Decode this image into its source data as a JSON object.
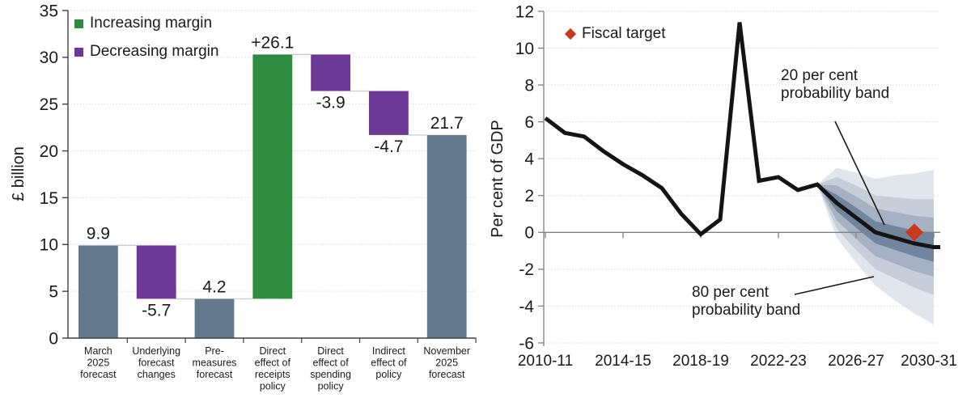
{
  "chart_data": [
    {
      "type": "bar",
      "subtype": "waterfall",
      "ylabel": "£ billion",
      "ylim": [
        0,
        35
      ],
      "yticks": [
        0,
        5,
        10,
        15,
        20,
        25,
        30,
        35
      ],
      "grid": "horizontal-dotted",
      "legend_position": "top-left",
      "legend": [
        {
          "label": "Increasing margin",
          "color": "#2f8b3f"
        },
        {
          "label": "Decreasing margin",
          "color": "#6c3a96"
        }
      ],
      "categories": [
        "March 2025 forecast",
        "Underlying forecast changes",
        "Pre-measures forecast",
        "Direct effect of receipts policy",
        "Direct effect of spending policy",
        "Indirect effect of policy",
        "November 2025 forecast"
      ],
      "category_lines": [
        [
          "March",
          "2025",
          "forecast"
        ],
        [
          "Underlying",
          "forecast",
          "changes"
        ],
        [
          "Pre-",
          "measures",
          "forecast"
        ],
        [
          "Direct",
          "effect of",
          "receipts",
          "policy"
        ],
        [
          "Direct",
          "effect of",
          "spending",
          "policy"
        ],
        [
          "Indirect",
          "effect of",
          "policy"
        ],
        [
          "November",
          "2025",
          "forecast"
        ]
      ],
      "bars": [
        {
          "base": 0,
          "top": 9.9,
          "value_label": "9.9",
          "label_side": "above",
          "color": "#64798e",
          "role": "total"
        },
        {
          "base": 4.2,
          "top": 9.9,
          "value_label": "-5.7",
          "label_side": "below",
          "color": "#6c3a96",
          "role": "decrease"
        },
        {
          "base": 0,
          "top": 4.2,
          "value_label": "4.2",
          "label_side": "above",
          "color": "#64798e",
          "role": "total"
        },
        {
          "base": 4.2,
          "top": 30.3,
          "value_label": "+26.1",
          "label_side": "above",
          "color": "#2f8b3f",
          "role": "increase"
        },
        {
          "base": 26.4,
          "top": 30.3,
          "value_label": "-3.9",
          "label_side": "below",
          "color": "#6c3a96",
          "role": "decrease"
        },
        {
          "base": 21.7,
          "top": 26.4,
          "value_label": "-4.7",
          "label_side": "below",
          "color": "#6c3a96",
          "role": "decrease"
        },
        {
          "base": 0,
          "top": 21.7,
          "value_label": "21.7",
          "label_side": "above",
          "color": "#64798e",
          "role": "total"
        }
      ]
    },
    {
      "type": "line",
      "subtype": "fan-chart",
      "ylabel": "Per cent of GDP",
      "ylim": [
        -6,
        12
      ],
      "yticks": [
        -6,
        -4,
        -2,
        0,
        2,
        4,
        6,
        8,
        10,
        12
      ],
      "grid": "horizontal-dotted",
      "x_tick_labels": [
        "2010-11",
        "2014-15",
        "2018-19",
        "2022-23",
        "2026-27",
        "2030-31"
      ],
      "x_tick_indices": [
        0,
        4,
        8,
        12,
        16,
        20
      ],
      "years": [
        "2010-11",
        "2011-12",
        "2012-13",
        "2013-14",
        "2014-15",
        "2015-16",
        "2016-17",
        "2017-18",
        "2018-19",
        "2019-20",
        "2020-21",
        "2021-22",
        "2022-23",
        "2023-24",
        "2024-25",
        "2025-26",
        "2026-27",
        "2027-28",
        "2028-29",
        "2029-30",
        "2030-31"
      ],
      "line": {
        "color": "#141414",
        "values": [
          6.2,
          5.4,
          5.2,
          4.4,
          3.7,
          3.1,
          2.4,
          1.0,
          -0.1,
          0.7,
          11.4,
          2.8,
          3.0,
          2.3,
          2.6,
          1.6,
          0.8,
          0.0,
          -0.3,
          -0.6,
          -0.8
        ]
      },
      "fan": {
        "start_index": 14,
        "band_colors_inner_to_outer": [
          "#71869e",
          "#a6b2c3",
          "#c7ced9",
          "#e1e5ec"
        ],
        "band_offsets_inner_to_outer": [
          [
            0,
            0.45,
            0.55,
            0.6,
            0.65,
            0.7,
            0.8
          ],
          [
            0,
            0.95,
            1.15,
            1.3,
            1.4,
            1.5,
            1.6
          ],
          [
            0,
            1.4,
            1.75,
            2.0,
            2.2,
            2.4,
            2.6
          ],
          [
            0,
            1.9,
            2.45,
            2.9,
            3.4,
            3.8,
            4.2
          ]
        ]
      },
      "fiscal_target": {
        "legend_label": "Fiscal target",
        "year": "2029-30",
        "value": 0,
        "color": "#c8391d"
      },
      "annotations": [
        {
          "text": "20 per cent\nprobability band",
          "points_to": "inner band"
        },
        {
          "text": "80 per cent\nprobability band",
          "points_to": "outer band"
        }
      ]
    }
  ]
}
